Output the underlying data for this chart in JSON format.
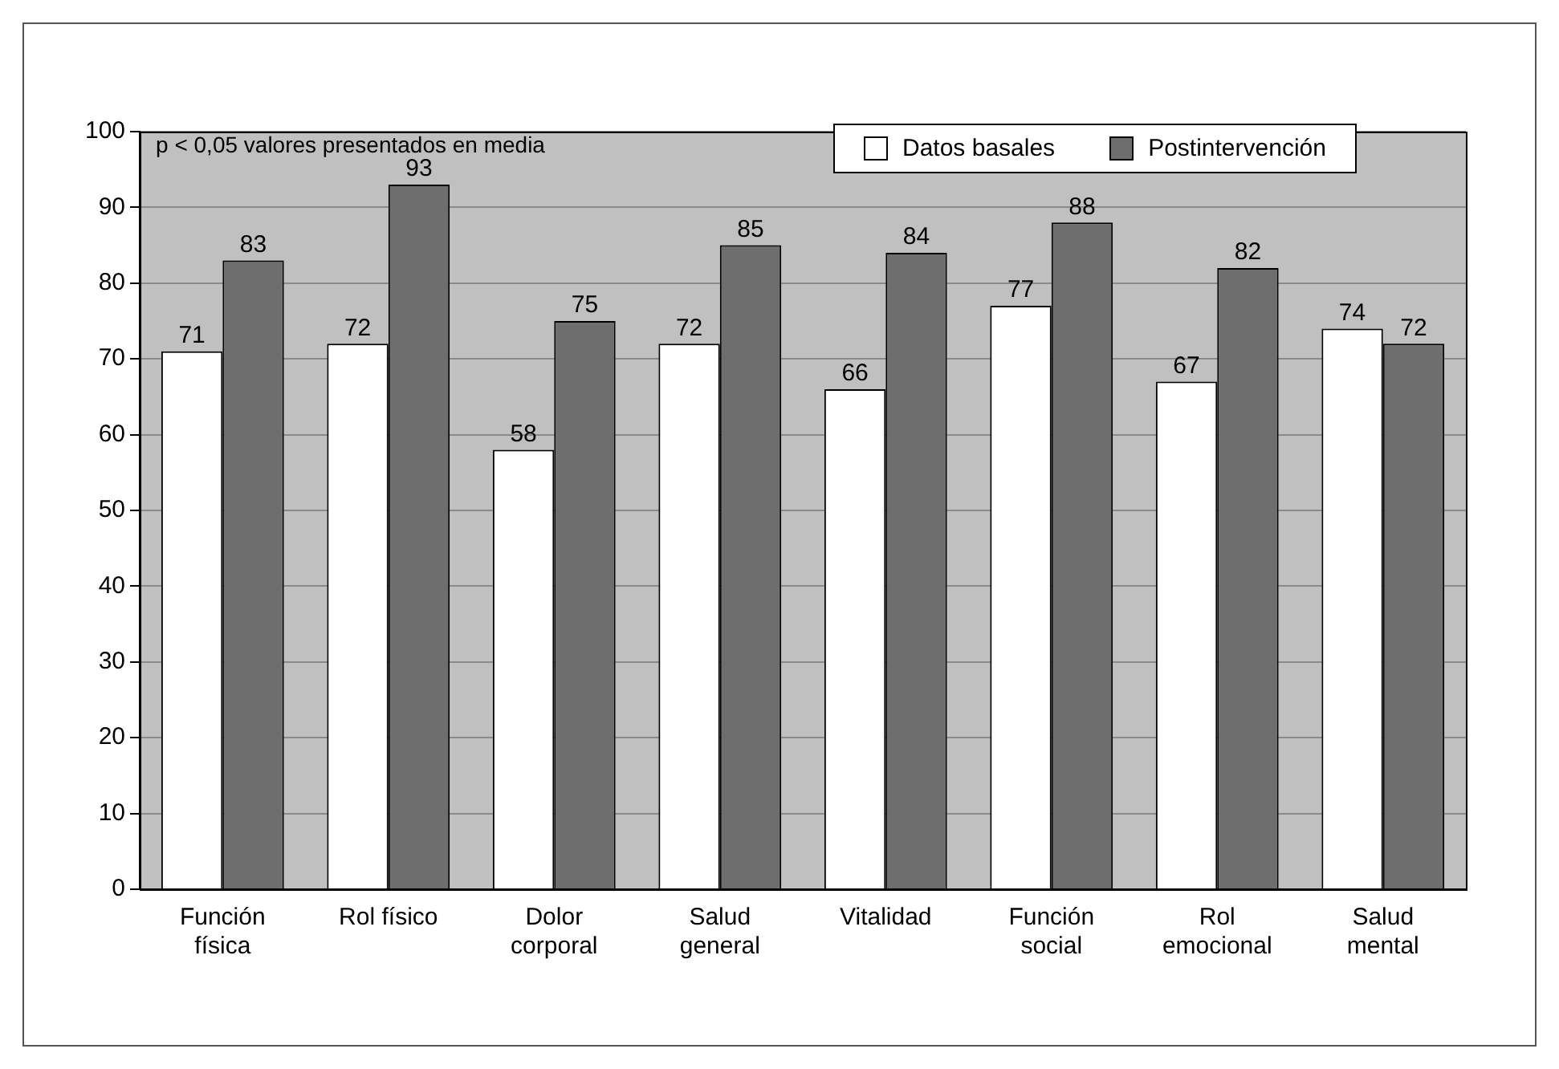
{
  "chart_data": {
    "type": "bar",
    "categories": [
      "Función física",
      "Rol físico",
      "Dolor corporal",
      "Salud general",
      "Vitalidad",
      "Función social",
      "Rol emocional",
      "Salud mental"
    ],
    "series": [
      {
        "name": "Datos basales",
        "color": "#ffffff",
        "values": [
          71,
          72,
          58,
          72,
          66,
          77,
          67,
          74
        ]
      },
      {
        "name": "Postintervención",
        "color": "#6e6e6e",
        "values": [
          83,
          93,
          75,
          85,
          84,
          88,
          82,
          72
        ]
      }
    ],
    "ylim": [
      0,
      100
    ],
    "yticks": [
      0,
      10,
      20,
      30,
      40,
      50,
      60,
      70,
      80,
      90,
      100
    ],
    "grid": "y",
    "legend": "top right",
    "data_labels": true,
    "annotations": [
      "p < 0,05 valores presentados en media"
    ]
  }
}
